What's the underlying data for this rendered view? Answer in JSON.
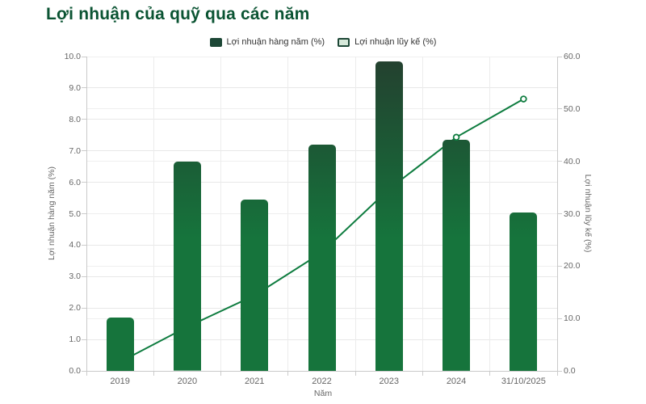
{
  "title": "Lợi nhuận của quỹ qua các năm",
  "legend": {
    "annual_label": "Lợi nhuận hàng năm (%)",
    "cumulative_label": "Lợi nhuận lũy kế (%)"
  },
  "colors": {
    "title": "#0b5433",
    "bar_gradient_top": "#24402f",
    "bar_gradient_mid": "#1b5c36",
    "bar_main": "#16743c",
    "line": "#0e7c3f",
    "marker_fill": "#ffffff",
    "legend_annual_swatch": "#1d4736",
    "legend_cumulative_fill": "#d6e9da",
    "axis_text": "#666666",
    "grid": "#e8e8e8",
    "axis_line": "#c9c9c9"
  },
  "chart_data": {
    "type": "bar",
    "subtype": "bar+line dual-axis combo",
    "categories": [
      "2019",
      "2020",
      "2021",
      "2022",
      "2023",
      "2024",
      "31/10/2025"
    ],
    "series": [
      {
        "name": "Lợi nhuận hàng năm (%)",
        "type": "bar",
        "axis": "left",
        "values": [
          1.7,
          6.65,
          5.45,
          7.2,
          9.85,
          7.35,
          5.05
        ]
      },
      {
        "name": "Lợi nhuận lũy kế (%)",
        "type": "line",
        "axis": "right",
        "values": [
          1.7,
          8.4,
          14.4,
          22.6,
          34.7,
          44.6,
          51.9
        ]
      }
    ],
    "title": "Lợi nhuận của quỹ qua các năm",
    "xlabel": "Năm",
    "left_axis": {
      "title": "Lợi nhuận hàng năm (%)",
      "min": 0,
      "max": 10,
      "tick_labels": [
        "10.0",
        "9.0",
        "8.0",
        "7.0",
        "6.0",
        "5.0",
        "4.0",
        "3.0",
        "2.0",
        "1.0",
        "0.0"
      ]
    },
    "right_axis": {
      "title": "Lợi nhuận lũy kế (%)",
      "min": 0,
      "max": 60,
      "tick_labels": [
        "60.0",
        "50.0",
        "40.0",
        "30.0",
        "20.0",
        "10.0",
        "0.0"
      ]
    },
    "grid": true,
    "legend_position": "top-center"
  }
}
